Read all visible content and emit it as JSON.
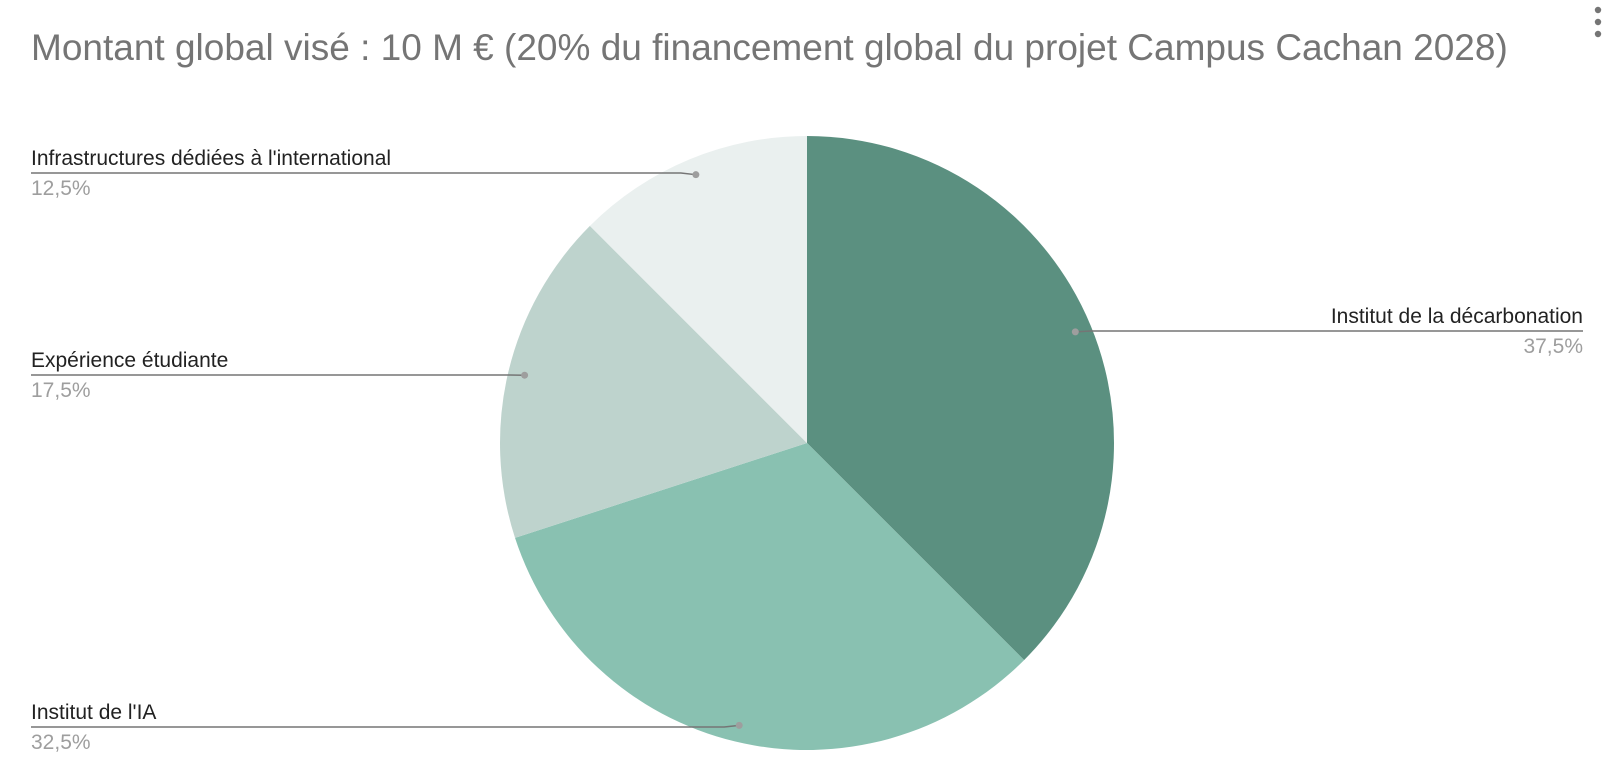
{
  "chart_data": {
    "type": "pie",
    "title": "Montant global visé : 10 M € (20% du financement global du projet Campus Cachan 2028)",
    "categories": [
      "Institut de la décarbonation",
      "Institut de l'IA",
      "Expérience étudiante",
      "Infrastructures dédiées à l'international"
    ],
    "values": [
      37.5,
      32.5,
      17.5,
      12.5
    ],
    "value_labels": [
      "37,5%",
      "32,5%",
      "17,5%",
      "12,5%"
    ],
    "colors": [
      "#5b9080",
      "#89c1b1",
      "#bed3cd",
      "#eaf0ef"
    ]
  }
}
